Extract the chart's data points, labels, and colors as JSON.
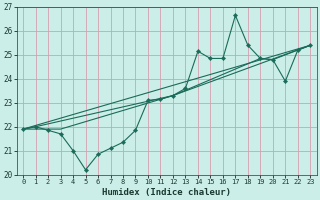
{
  "xlabel": "Humidex (Indice chaleur)",
  "bg_color": "#cceee8",
  "grid_color": "#d4a0b0",
  "line_color": "#1a6b5a",
  "xlim": [
    -0.5,
    23.5
  ],
  "ylim": [
    20,
    27
  ],
  "xticks": [
    0,
    1,
    2,
    3,
    4,
    5,
    6,
    7,
    8,
    9,
    10,
    11,
    12,
    13,
    14,
    15,
    16,
    17,
    18,
    19,
    20,
    21,
    22,
    23
  ],
  "yticks": [
    20,
    21,
    22,
    23,
    24,
    25,
    26,
    27
  ],
  "line1_x": [
    0,
    1,
    2,
    3,
    4,
    5,
    6,
    7,
    8,
    9,
    10,
    11,
    12,
    13,
    14,
    15,
    16,
    17,
    18,
    19,
    20,
    21,
    22,
    23
  ],
  "line1_y": [
    21.9,
    22.0,
    21.85,
    21.7,
    21.0,
    20.2,
    20.85,
    21.1,
    21.35,
    21.85,
    23.1,
    23.15,
    23.3,
    23.6,
    25.15,
    24.85,
    24.85,
    26.65,
    25.4,
    24.85,
    24.8,
    23.9,
    25.2,
    25.4
  ],
  "line2_x": [
    0,
    23
  ],
  "line2_y": [
    21.9,
    25.4
  ],
  "line3_x": [
    0,
    3,
    12,
    23
  ],
  "line3_y": [
    21.9,
    21.9,
    23.3,
    25.4
  ],
  "line4_x": [
    0,
    1,
    12,
    19,
    20,
    22,
    23
  ],
  "line4_y": [
    21.9,
    22.0,
    23.3,
    24.85,
    24.8,
    25.2,
    25.4
  ]
}
